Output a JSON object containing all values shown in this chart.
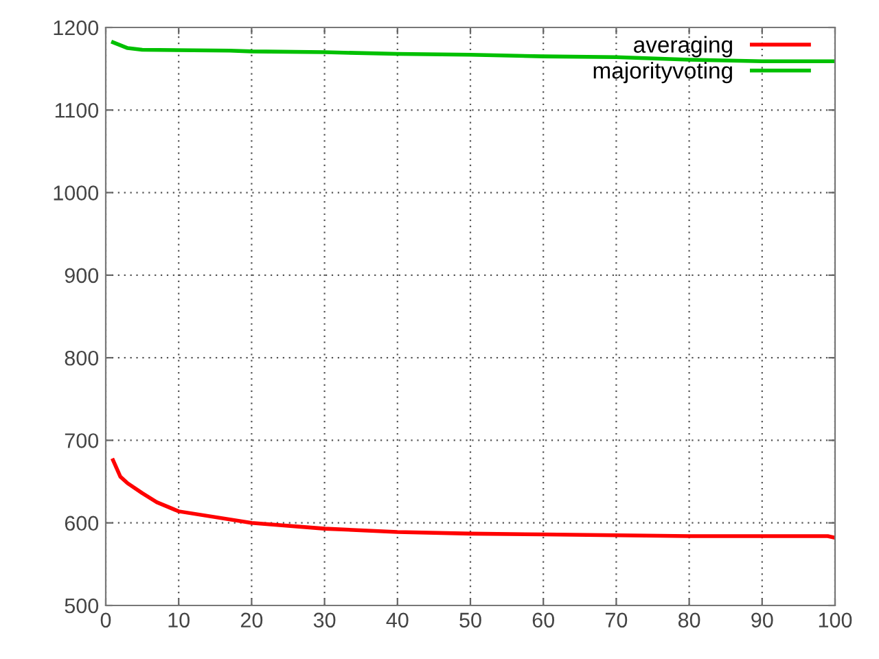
{
  "chart_data": {
    "type": "line",
    "xlim": [
      0,
      100
    ],
    "ylim": [
      500,
      1200
    ],
    "xticks": [
      0,
      10,
      20,
      30,
      40,
      50,
      60,
      70,
      80,
      90,
      100
    ],
    "yticks": [
      500,
      600,
      700,
      800,
      900,
      1000,
      1100,
      1200
    ],
    "grid": true,
    "legend": "top right",
    "line_style": "solid",
    "marker": "none",
    "series": [
      {
        "name": "averaging",
        "color": "#ff0000",
        "x": [
          1,
          2,
          3,
          5,
          7,
          10,
          20,
          30,
          40,
          50,
          60,
          70,
          80,
          90,
          99,
          100
        ],
        "values": [
          676,
          656,
          648,
          636,
          625,
          614,
          600,
          593,
          589,
          587,
          586,
          585,
          584,
          584,
          584,
          582
        ]
      },
      {
        "name": "majorityvoting",
        "color": "#00c000",
        "x": [
          1,
          3,
          5,
          17,
          20,
          30,
          40,
          50,
          60,
          70,
          80,
          90,
          100
        ],
        "values": [
          1182,
          1175,
          1173,
          1172,
          1171,
          1170,
          1168,
          1167,
          1165,
          1164,
          1161,
          1159,
          1159
        ]
      }
    ]
  }
}
